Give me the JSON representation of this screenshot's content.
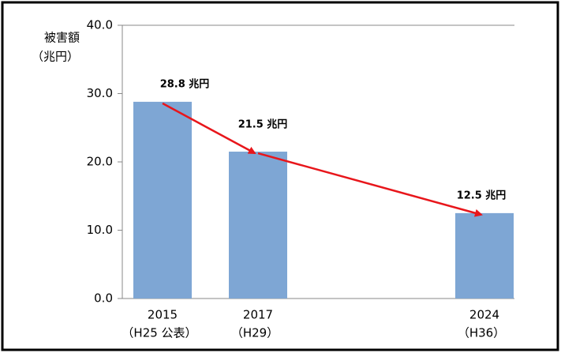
{
  "chart_data": {
    "type": "bar",
    "y_axis_label": "被害額",
    "y_axis_unit": "（兆円）",
    "categories": [
      "2015",
      "2017",
      "2024"
    ],
    "category_sublabels": [
      "（H25 公表）",
      "（H29）",
      "（H36）"
    ],
    "values": [
      28.8,
      21.5,
      12.5
    ],
    "value_labels": [
      "28.8 兆円",
      "21.5 兆円",
      "12.5 兆円"
    ],
    "color": "#7ea6d4",
    "ylim": [
      0,
      40
    ],
    "yticks": [
      {
        "value": 0,
        "label": "0.0"
      },
      {
        "value": 10,
        "label": "10.0"
      },
      {
        "value": 20,
        "label": "20.0"
      },
      {
        "value": 30,
        "label": "30.0"
      },
      {
        "value": 40,
        "label": "40.0"
      }
    ],
    "trend_arrow_color": "#e8161b"
  }
}
